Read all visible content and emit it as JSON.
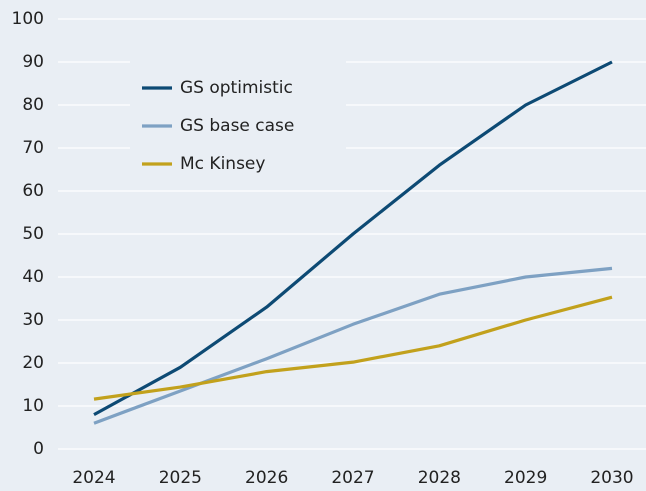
{
  "chart_data": {
    "type": "line",
    "x": [
      2024,
      2025,
      2026,
      2027,
      2028,
      2029,
      2030
    ],
    "series": [
      {
        "name": "GS optimistic",
        "color": "#0d4a74",
        "values": [
          8,
          19,
          33,
          50,
          66,
          80,
          90
        ]
      },
      {
        "name": "GS base case",
        "color": "#7ea1c3",
        "values": [
          6,
          13.5,
          21,
          29,
          36,
          40,
          42
        ]
      },
      {
        "name": "Mc Kinsey",
        "color": "#c2a11c",
        "values": [
          11.6,
          14.4,
          18,
          20.2,
          24,
          30,
          35.3
        ]
      }
    ],
    "xlim": [
      2024,
      2030
    ],
    "xticks": [
      2024,
      2025,
      2026,
      2027,
      2028,
      2029,
      2030
    ],
    "ylim": [
      0,
      100
    ],
    "yticks": [
      0,
      10,
      20,
      30,
      40,
      50,
      60,
      70,
      80,
      90,
      100
    ],
    "grid": true,
    "legend": "upper left"
  }
}
